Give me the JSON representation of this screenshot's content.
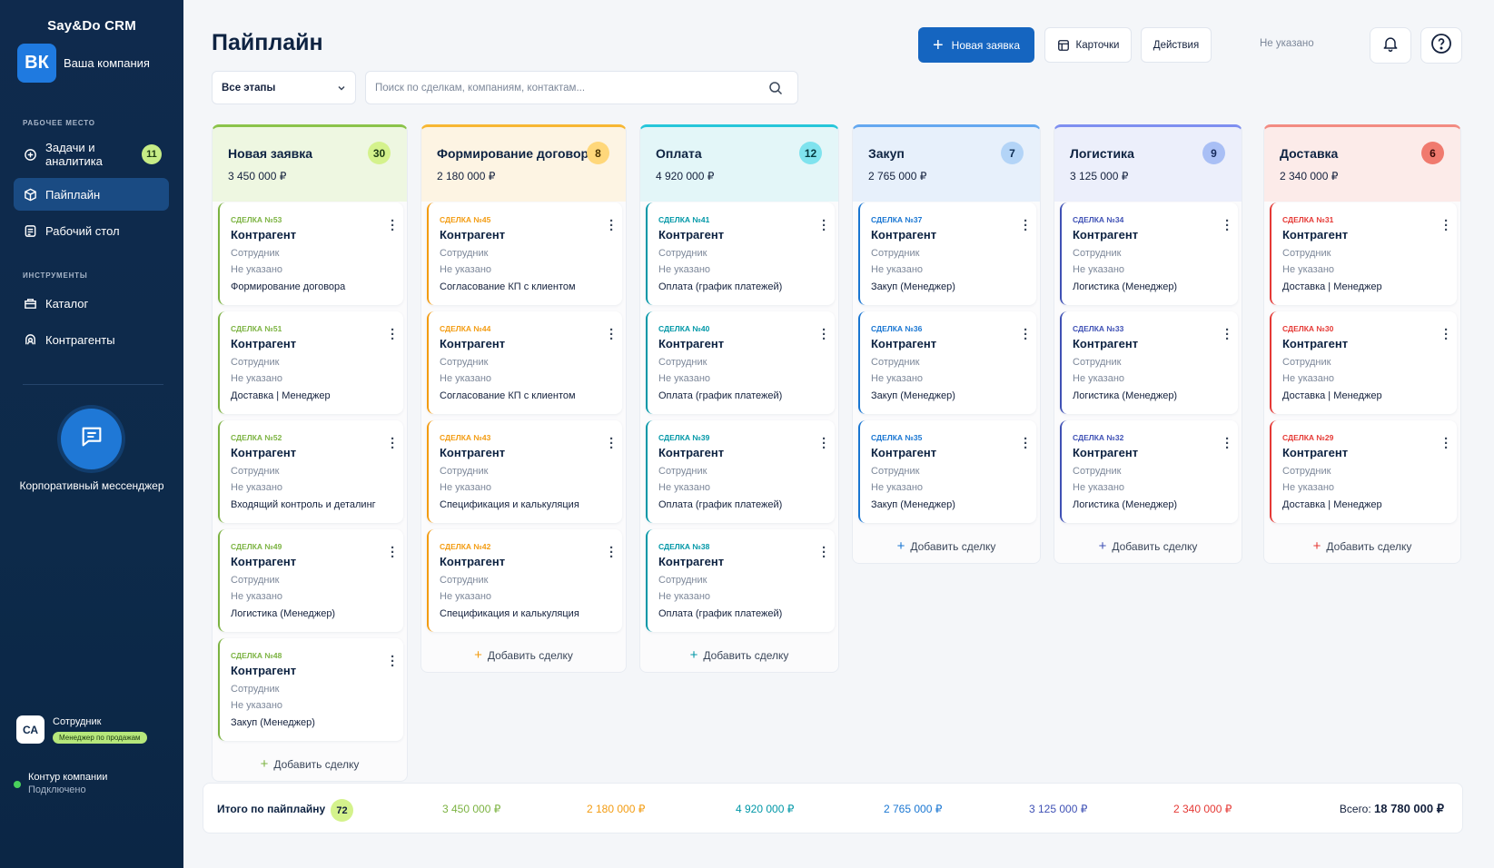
{
  "app": {
    "brand": "Say&Do CRM",
    "company_initials": "ВК",
    "company_name": "Ваша компания"
  },
  "sidebar": {
    "workspace_label": "РАБОЧЕЕ МЕСТО",
    "tools_label": "ИНСТРУМЕНТЫ",
    "items": [
      {
        "label": "Задачи и аналитика",
        "badge": "11",
        "icon": "tasks-icon"
      },
      {
        "label": "Пайплайн",
        "icon": "pipeline-icon"
      },
      {
        "label": "Рабочий стол",
        "icon": "desktop-icon"
      },
      {
        "label": "Каталог",
        "icon": "catalog-icon"
      },
      {
        "label": "Контрагенты",
        "icon": "contacts-icon"
      }
    ],
    "messenger_label": "Корпоративный мессенджер",
    "user": {
      "initials": "СА",
      "name": "Сотрудник",
      "role": "Менеджер по продажам"
    },
    "connection": {
      "title": "Контур компании",
      "status": "Подключено"
    }
  },
  "header": {
    "title": "Пайплайн",
    "new_button": "Новая заявка",
    "cards_button": "Карточки",
    "actions_button": "Действия",
    "not_set": "Не указано"
  },
  "filters": {
    "stage_select": "Все этапы",
    "search_placeholder": "Поиск по сделкам, компаниям, контактам..."
  },
  "columns": [
    {
      "name": "Новая заявка",
      "count": "30",
      "sum": "3 450 000 ₽",
      "accent": "#8bc34a",
      "tint": "#eef7e1",
      "badge_bg": "#d4f28c",
      "badge_fg": "#1d3b14",
      "deal_color": "#7cb342",
      "cards": [
        {
          "no": "СДЕЛКА №53",
          "agent": "Контрагент",
          "employee": "Сотрудник",
          "not_set": "Не указано",
          "stage": "Формирование договора"
        },
        {
          "no": "СДЕЛКА №51",
          "agent": "Контрагент",
          "employee": "Сотрудник",
          "not_set": "Не указано",
          "stage": "Доставка | Менеджер"
        },
        {
          "no": "СДЕЛКА №52",
          "agent": "Контрагент",
          "employee": "Сотрудник",
          "not_set": "Не указано",
          "stage": "Входящий контроль и деталинг"
        },
        {
          "no": "СДЕЛКА №49",
          "agent": "Контрагент",
          "employee": "Сотрудник",
          "not_set": "Не указано",
          "stage": "Логистика (Менеджер)"
        },
        {
          "no": "СДЕЛКА №48",
          "agent": "Контрагент",
          "employee": "Сотрудник",
          "not_set": "Не указано",
          "stage": "Закуп (Менеджер)"
        }
      ],
      "add": "Добавить сделку"
    },
    {
      "name": "Формирование договора",
      "count": "8",
      "sum": "2 180 000 ₽",
      "accent": "#f7b733",
      "tint": "#fdf4e3",
      "badge_bg": "#ffd77a",
      "badge_fg": "#4a3200",
      "deal_color": "#f39c12",
      "cards": [
        {
          "no": "СДЕЛКА №45",
          "agent": "Контрагент",
          "employee": "Сотрудник",
          "not_set": "Не указано",
          "stage": "Согласование КП с клиентом"
        },
        {
          "no": "СДЕЛКА №44",
          "agent": "Контрагент",
          "employee": "Сотрудник",
          "not_set": "Не указано",
          "stage": "Согласование КП с клиентом"
        },
        {
          "no": "СДЕЛКА №43",
          "agent": "Контрагент",
          "employee": "Сотрудник",
          "not_set": "Не указано",
          "stage": "Спецификация и калькуляция"
        },
        {
          "no": "СДЕЛКА №42",
          "agent": "Контрагент",
          "employee": "Сотрудник",
          "not_set": "Не указано",
          "stage": "Спецификация и калькуляция"
        }
      ],
      "add": "Добавить сделку"
    },
    {
      "name": "Оплата",
      "count": "12",
      "sum": "4 920 000 ₽",
      "accent": "#26c6da",
      "tint": "#e3f6f8",
      "badge_bg": "#7fe3ee",
      "badge_fg": "#053a40",
      "deal_color": "#0097a7",
      "cards": [
        {
          "no": "СДЕЛКА №41",
          "agent": "Контрагент",
          "employee": "Сотрудник",
          "not_set": "Не указано",
          "stage": "Оплата (график платежей)"
        },
        {
          "no": "СДЕЛКА №40",
          "agent": "Контрагент",
          "employee": "Сотрудник",
          "not_set": "Не указано",
          "stage": "Оплата (график платежей)"
        },
        {
          "no": "СДЕЛКА №39",
          "agent": "Контрагент",
          "employee": "Сотрудник",
          "not_set": "Не указано",
          "stage": "Оплата (график платежей)"
        },
        {
          "no": "СДЕЛКА №38",
          "agent": "Контрагент",
          "employee": "Сотрудник",
          "not_set": "Не указано",
          "stage": "Оплата (график платежей)"
        }
      ],
      "add": "Добавить сделку"
    },
    {
      "name": "Закуп",
      "count": "7",
      "sum": "2 765 000 ₽",
      "accent": "#64a8f0",
      "tint": "#e7f0fb",
      "badge_bg": "#b3d4f7",
      "badge_fg": "#0d2c52",
      "deal_color": "#1976d2",
      "cards": [
        {
          "no": "СДЕЛКА №37",
          "agent": "Контрагент",
          "employee": "Сотрудник",
          "not_set": "Не указано",
          "stage": "Закуп (Менеджер)"
        },
        {
          "no": "СДЕЛКА №36",
          "agent": "Контрагент",
          "employee": "Сотрудник",
          "not_set": "Не указано",
          "stage": "Закуп (Менеджер)"
        },
        {
          "no": "СДЕЛКА №35",
          "agent": "Контрагент",
          "employee": "Сотрудник",
          "not_set": "Не указано",
          "stage": "Закуп (Менеджер)"
        }
      ],
      "add": "Добавить сделку"
    },
    {
      "name": "Логистика",
      "count": "9",
      "sum": "3 125 000 ₽",
      "accent": "#7e8ff0",
      "tint": "#eceffb",
      "badge_bg": "#a9bff5",
      "badge_fg": "#162a5c",
      "deal_color": "#3f51b5",
      "cards": [
        {
          "no": "СДЕЛКА №34",
          "agent": "Контрагент",
          "employee": "Сотрудник",
          "not_set": "Не указано",
          "stage": "Логистика (Менеджер)"
        },
        {
          "no": "СДЕЛКА №33",
          "agent": "Контрагент",
          "employee": "Сотрудник",
          "not_set": "Не указано",
          "stage": "Логистика (Менеджер)"
        },
        {
          "no": "СДЕЛКА №32",
          "agent": "Контрагент",
          "employee": "Сотрудник",
          "not_set": "Не указано",
          "stage": "Логистика (Менеджер)"
        }
      ],
      "add": "Добавить сделку"
    },
    {
      "name": "Доставка",
      "count": "6",
      "sum": "2 340 000 ₽",
      "accent": "#f28b82",
      "tint": "#fcebe9",
      "badge_bg": "#f07a6e",
      "badge_fg": "#3b0a06",
      "deal_color": "#e53935",
      "cards": [
        {
          "no": "СДЕЛКА №31",
          "agent": "Контрагент",
          "employee": "Сотрудник",
          "not_set": "Не указано",
          "stage": "Доставка | Менеджер"
        },
        {
          "no": "СДЕЛКА №30",
          "agent": "Контрагент",
          "employee": "Сотрудник",
          "not_set": "Не указано",
          "stage": "Доставка | Менеджер"
        },
        {
          "no": "СДЕЛКА №29",
          "agent": "Контрагент",
          "employee": "Сотрудник",
          "not_set": "Не указано",
          "stage": "Доставка | Менеджер"
        }
      ],
      "add": "Добавить сделку"
    }
  ],
  "footer": {
    "label": "Итого по пайплайну",
    "count": "72",
    "sums": [
      {
        "value": "3 450 000 ₽",
        "color": "#7cb342"
      },
      {
        "value": "2 180 000 ₽",
        "color": "#f39c12"
      },
      {
        "value": "4 920 000 ₽",
        "color": "#0097a7"
      },
      {
        "value": "2 765 000 ₽",
        "color": "#1976d2"
      },
      {
        "value": "3 125 000 ₽",
        "color": "#3f51b5"
      },
      {
        "value": "2 340 000 ₽",
        "color": "#e53935"
      }
    ],
    "total_label": "Всего:",
    "total_value": "18 780 000 ₽"
  }
}
